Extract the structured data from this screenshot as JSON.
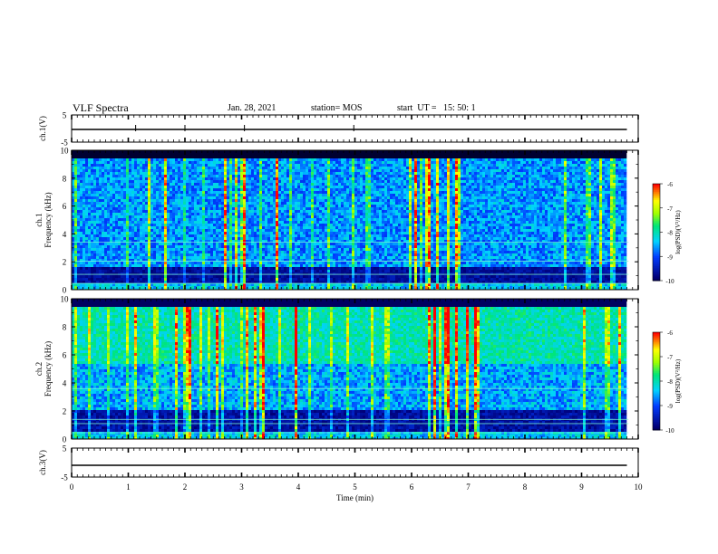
{
  "header": {
    "title": "VLF Spectra",
    "date": "Jan. 28, 2021",
    "station": "station= MOS",
    "start": "start  UT =   15: 50: 1"
  },
  "colors": {
    "background": "#ffffff",
    "spectrum_low": "#00007a",
    "spectrum_mid": "#00d0ff",
    "spectrum_high": "#ffff00",
    "spectrum_peak": "#ff0000"
  },
  "chart_data": [
    {
      "type": "line",
      "panel": "ch1-waveform",
      "ylabel": "ch.1(V)",
      "ylim": [
        -5,
        5
      ],
      "yticks": [
        "5",
        "-5"
      ],
      "xlim": [
        0,
        10
      ],
      "series": [
        {
          "x": [
            0,
            9.8
          ],
          "values": [
            0,
            0
          ]
        }
      ]
    },
    {
      "type": "heatmap",
      "panel": "ch1-spectrogram",
      "ylabel": "ch.1\nFrequency (kHz)",
      "ylim": [
        0,
        10
      ],
      "yticks": [
        "0",
        "2",
        "4",
        "6",
        "8",
        "10"
      ],
      "xlim": [
        0,
        10
      ],
      "colorbar": {
        "label": "log(PSD)(V²/Hz)",
        "range": [
          -10,
          -6
        ],
        "ticks": [
          "-6",
          "-7",
          "-8",
          "-9",
          "-10"
        ]
      }
    },
    {
      "type": "heatmap",
      "panel": "ch2-spectrogram",
      "ylabel": "ch.2\nFrequency (kHz)",
      "ylim": [
        0,
        10
      ],
      "yticks": [
        "0",
        "2",
        "4",
        "6",
        "8",
        "10"
      ],
      "xlim": [
        0,
        10
      ],
      "colorbar": {
        "label": "log(PSD)(V²/Hz)",
        "range": [
          -10,
          -6
        ],
        "ticks": [
          "-6",
          "-7",
          "-8",
          "-9",
          "-10"
        ]
      }
    },
    {
      "type": "line",
      "panel": "ch3-waveform",
      "ylabel": "ch.3(V)",
      "ylim": [
        -5,
        5
      ],
      "yticks": [
        "5",
        "-5"
      ],
      "xlim": [
        0,
        10
      ],
      "xlabel": "Time  (min)",
      "xticks": [
        "0",
        "1",
        "2",
        "3",
        "4",
        "5",
        "6",
        "7",
        "8",
        "9",
        "10"
      ],
      "series": [
        {
          "x": [
            0,
            9.8
          ],
          "values": [
            0,
            0
          ]
        }
      ]
    }
  ]
}
